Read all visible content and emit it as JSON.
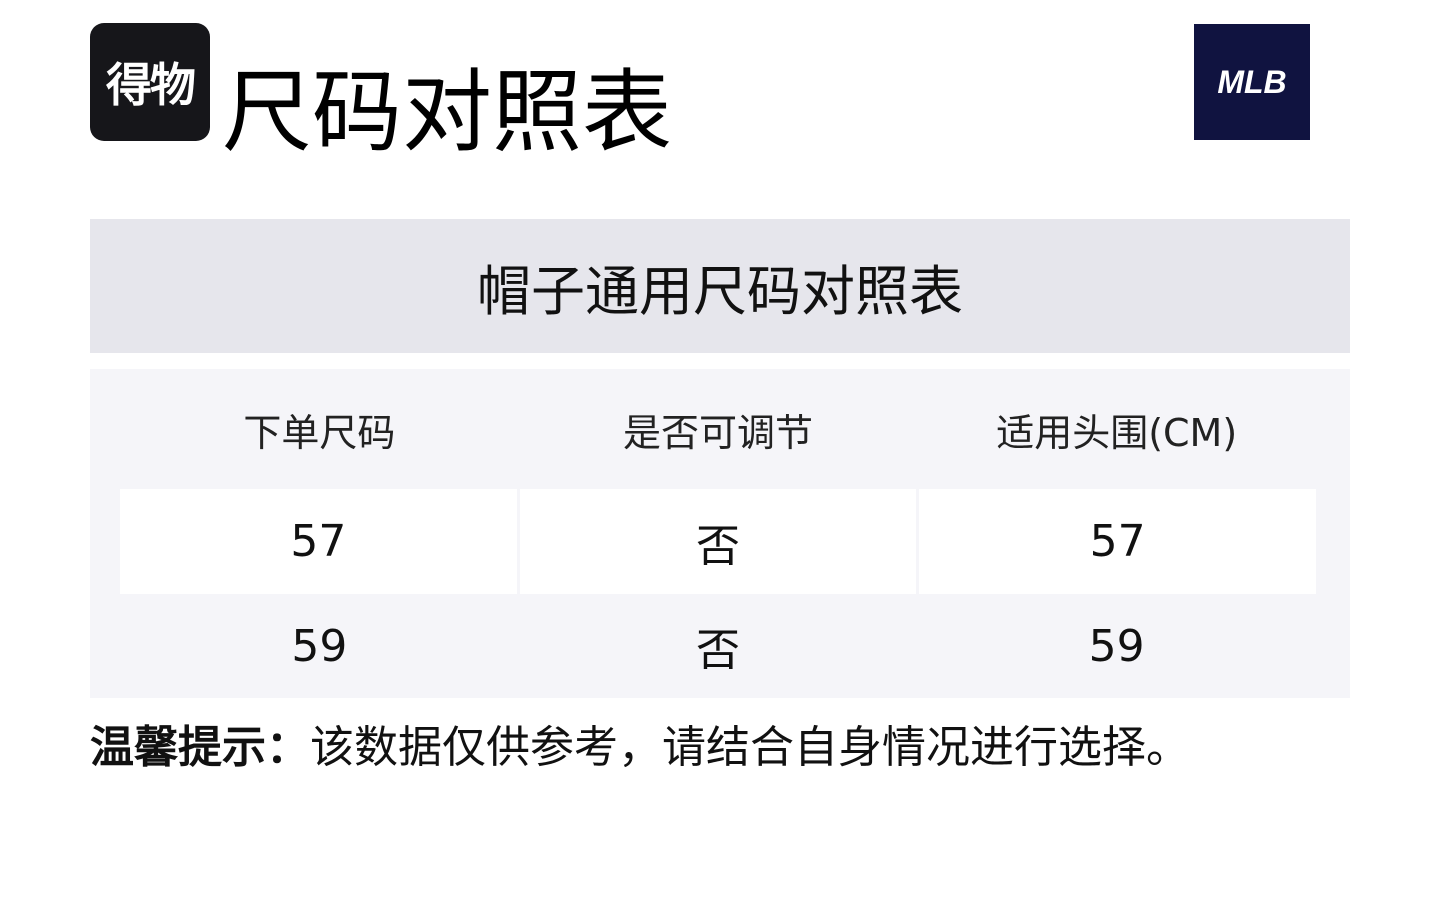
{
  "brand_logo": "得物",
  "title": "尺码对照表",
  "partner_logo": "MLB",
  "colors": {
    "band": "#e6e6ec",
    "table_bg": "#f5f5f9",
    "mlb_bg": "#101340"
  },
  "table": {
    "caption": "帽子通用尺码对照表",
    "headers": [
      "下单尺码",
      "是否可调节",
      "适用头围(CM)"
    ],
    "rows": [
      [
        "57",
        "否",
        "57"
      ],
      [
        "59",
        "否",
        "59"
      ]
    ]
  },
  "note": {
    "label": "温馨提示：",
    "text": "该数据仅供参考，请结合自身情况进行选择。"
  }
}
